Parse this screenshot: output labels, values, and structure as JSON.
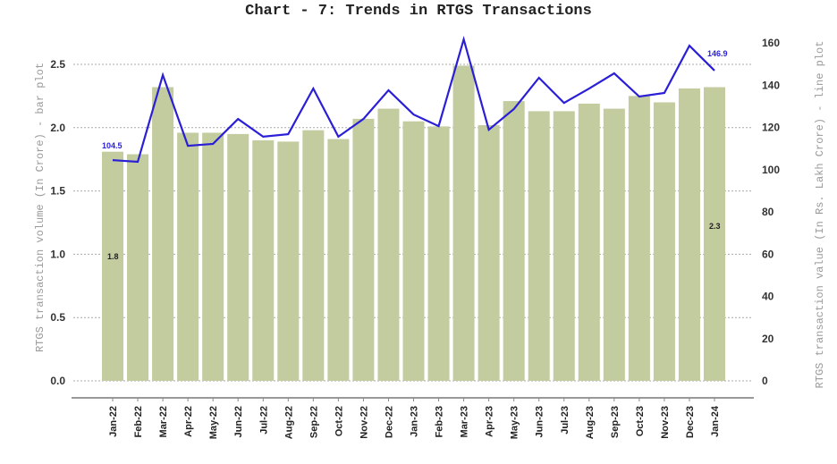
{
  "chart_data": {
    "type": "bar+line",
    "title": "Chart - 7: Trends in RTGS Transactions",
    "xlabel": "",
    "ylabel_left": "RTGS transaction volume (In Crore) - bar plot",
    "ylabel_right": "RTGS transaction value (In Rs. Lakh Crore) - line plot",
    "categories": [
      "Jan-22",
      "Feb-22",
      "Mar-22",
      "Apr-22",
      "May-22",
      "Jun-22",
      "Jul-22",
      "Aug-22",
      "Sep-22",
      "Oct-22",
      "Nov-22",
      "Dec-22",
      "Jan-23",
      "Feb-23",
      "Mar-23",
      "Apr-23",
      "May-23",
      "Jun-23",
      "Jul-23",
      "Aug-23",
      "Sep-23",
      "Oct-23",
      "Nov-23",
      "Dec-23",
      "Jan-24"
    ],
    "series": [
      {
        "name": "RTGS transaction volume (In Crore)",
        "type": "bar",
        "axis": "left",
        "color": "#c2cc9f",
        "values": [
          1.81,
          1.79,
          2.32,
          1.96,
          1.96,
          1.95,
          1.9,
          1.89,
          1.98,
          1.91,
          2.07,
          2.15,
          2.05,
          2.01,
          2.49,
          2.02,
          2.21,
          2.13,
          2.13,
          2.19,
          2.15,
          2.25,
          2.2,
          2.31,
          2.32
        ]
      },
      {
        "name": "RTGS transaction value (In Rs. Lakh Crore)",
        "type": "line",
        "axis": "right",
        "color": "#2a1fd6",
        "values": [
          104.5,
          103.7,
          144.8,
          111.3,
          112.2,
          124.0,
          115.6,
          116.8,
          138.4,
          115.6,
          124.0,
          137.6,
          126.1,
          120.6,
          161.7,
          118.9,
          128.7,
          143.5,
          131.6,
          138.4,
          145.6,
          134.6,
          136.3,
          158.7,
          146.9
        ]
      }
    ],
    "ylim_left": [
      0,
      2.5
    ],
    "ylim_right": [
      0,
      160
    ],
    "yticks_left": [
      "0.0",
      "0.5",
      "1.0",
      "1.5",
      "2.0",
      "2.5"
    ],
    "yticks_right": [
      "0",
      "20",
      "40",
      "60",
      "80",
      "100",
      "120",
      "140",
      "160"
    ],
    "grid": "horizontal dotted",
    "annotations": [
      {
        "text": "104.5",
        "series": "line",
        "category": "Jan-22",
        "color": "#2a1fd6"
      },
      {
        "text": "146.9",
        "series": "line",
        "category": "Jan-24",
        "color": "#2a1fd6"
      },
      {
        "text": "1.8",
        "series": "bar",
        "category": "Jan-22",
        "color": "#222222"
      },
      {
        "text": "2.3",
        "series": "bar",
        "category": "Jan-24",
        "color": "#222222"
      }
    ]
  }
}
